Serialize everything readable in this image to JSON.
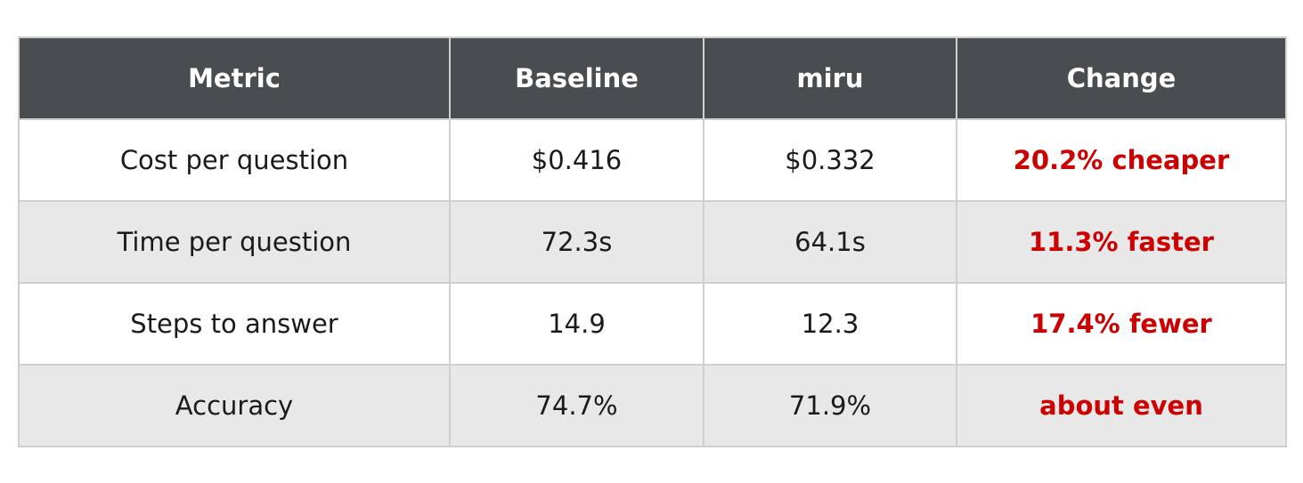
{
  "table": {
    "header": [
      "Metric",
      "Baseline",
      "miru",
      "Change"
    ],
    "rows": [
      [
        "Cost per question",
        "$0.416",
        "$0.332",
        "20.2% cheaper"
      ],
      [
        "Time per question",
        "72.3s",
        "64.1s",
        "11.3% faster"
      ],
      [
        "Steps to answer",
        "14.9",
        "12.3",
        "17.4% fewer"
      ],
      [
        "Accuracy",
        "74.7%",
        "71.9%",
        "about even"
      ]
    ]
  }
}
